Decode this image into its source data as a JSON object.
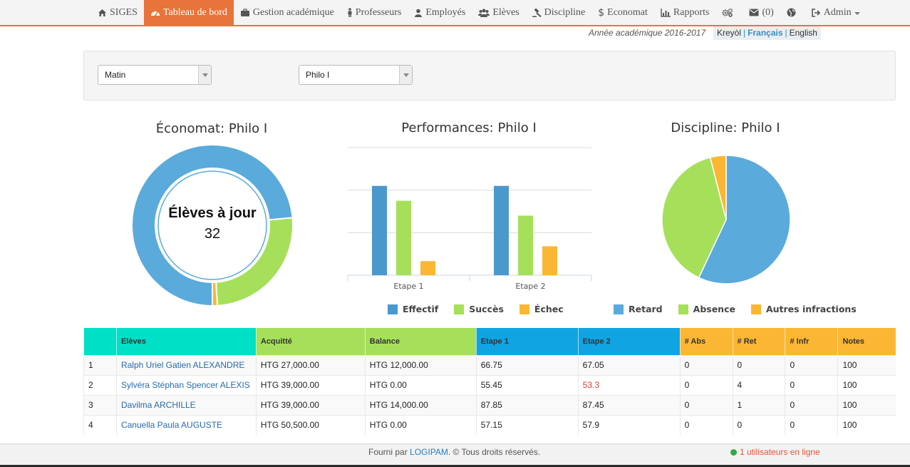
{
  "nav": {
    "items": [
      {
        "label": "SIGES",
        "icon": "home-icon",
        "active": false
      },
      {
        "label": "Tableau de bord",
        "icon": "dashboard-icon",
        "active": true
      },
      {
        "label": "Gestion académique",
        "icon": "briefcase-icon",
        "active": false
      },
      {
        "label": "Professeurs",
        "icon": "teacher-icon",
        "active": false
      },
      {
        "label": "Employés",
        "icon": "user-icon",
        "active": false
      },
      {
        "label": "Elèves",
        "icon": "users-icon",
        "active": false
      },
      {
        "label": "Discipline",
        "icon": "gavel-icon",
        "active": false
      },
      {
        "label": "Economat",
        "icon": "dollar-icon",
        "active": false
      },
      {
        "label": "Rapports",
        "icon": "bar-chart-icon",
        "active": false
      }
    ],
    "messages_count": "(0)",
    "admin_label": "Admin"
  },
  "academic_year": "Année académique 2016-2017",
  "languages": {
    "kreyol": "Kreyòl",
    "francais": "Français",
    "english": "English",
    "separator": "|"
  },
  "filters": {
    "shift": "Matin",
    "room": "Philo I"
  },
  "economat_chart": {
    "title": "Économat: Philo I",
    "center_label": "Élèves à jour",
    "center_value": "32",
    "colors": {
      "paid": "#5aaadc",
      "balance": "#a6e05a",
      "other": "#fbb733"
    }
  },
  "performance_chart": {
    "title": "Performances: Philo I",
    "legend": [
      "Effectif",
      "Succès",
      "Échec"
    ]
  },
  "discipline_chart": {
    "title": "Discipline: Philo I",
    "legend": [
      "Retard",
      "Absence",
      "Autres infractions"
    ]
  },
  "chart_data": [
    {
      "type": "pie",
      "title": "Économat: Philo I",
      "labels": [
        "",
        "",
        ""
      ],
      "values": [
        0.735,
        0.255,
        0.01
      ],
      "colors": [
        "#5aaadc",
        "#a6e05a",
        "#fbb733"
      ]
    },
    {
      "type": "bar",
      "title": "Performances: Philo I",
      "categories": [
        "Etape 1",
        "Etape 2"
      ],
      "ylim": [
        0,
        3
      ],
      "series": [
        {
          "name": "Effectif",
          "color": "#4b98cc",
          "values": [
            2.1,
            2.1
          ]
        },
        {
          "name": "Succès",
          "color": "#a6e05a",
          "values": [
            1.75,
            1.4
          ]
        },
        {
          "name": "Échec",
          "color": "#fbb733",
          "values": [
            0.33,
            0.68
          ]
        }
      ]
    },
    {
      "type": "pie",
      "title": "Discipline: Philo I",
      "labels": [
        "Retard",
        "Absence",
        "Autres infractions"
      ],
      "values": [
        57,
        39,
        4
      ],
      "colors": [
        "#5aaadc",
        "#a6e05a",
        "#fbb733"
      ]
    }
  ],
  "table": {
    "headers": [
      {
        "label": "",
        "color": "#00e0c6"
      },
      {
        "label": "Elèves",
        "color": "#00e0c6"
      },
      {
        "label": "Acquitté",
        "color": "#a6e05a"
      },
      {
        "label": "Balance",
        "color": "#a6e05a"
      },
      {
        "label": "Etape 1",
        "color": "#10a4e3"
      },
      {
        "label": "Etape 2",
        "color": "#10a4e3"
      },
      {
        "label": "# Abs",
        "color": "#fbb733"
      },
      {
        "label": "# Ret",
        "color": "#fbb733"
      },
      {
        "label": "# Infr",
        "color": "#fbb733"
      },
      {
        "label": "Notes",
        "color": "#fbb733"
      }
    ],
    "rows": [
      [
        "1",
        "Ralph Uriel Gatien ALEXANDRE",
        "HTG 27,000.00",
        "HTG 12,000.00",
        "66.75",
        "67.05",
        "0",
        "0",
        "0",
        "100"
      ],
      [
        "2",
        "Sylvéra Stéphan Spencer ALEXIS",
        "HTG 39,000.00",
        "HTG 0.00",
        "55.45",
        "53.3",
        "0",
        "4",
        "0",
        "100"
      ],
      [
        "3",
        "Davilma ARCHILLE",
        "HTG 39,000.00",
        "HTG 14,000.00",
        "87.85",
        "87.45",
        "0",
        "1",
        "0",
        "100"
      ],
      [
        "4",
        "Canuella Paula AUGUSTE",
        "HTG 50,500.00",
        "HTG 0.00",
        "57.15",
        "57.9",
        "0",
        "0",
        "0",
        "100"
      ]
    ],
    "red_cells": [
      [
        1,
        5
      ]
    ]
  },
  "footer": {
    "prefix": "Fourni par ",
    "brand": "LOGIPAM",
    "suffix": ". © Tous droits réservés.",
    "online": "1 utilisateurs en ligne"
  }
}
